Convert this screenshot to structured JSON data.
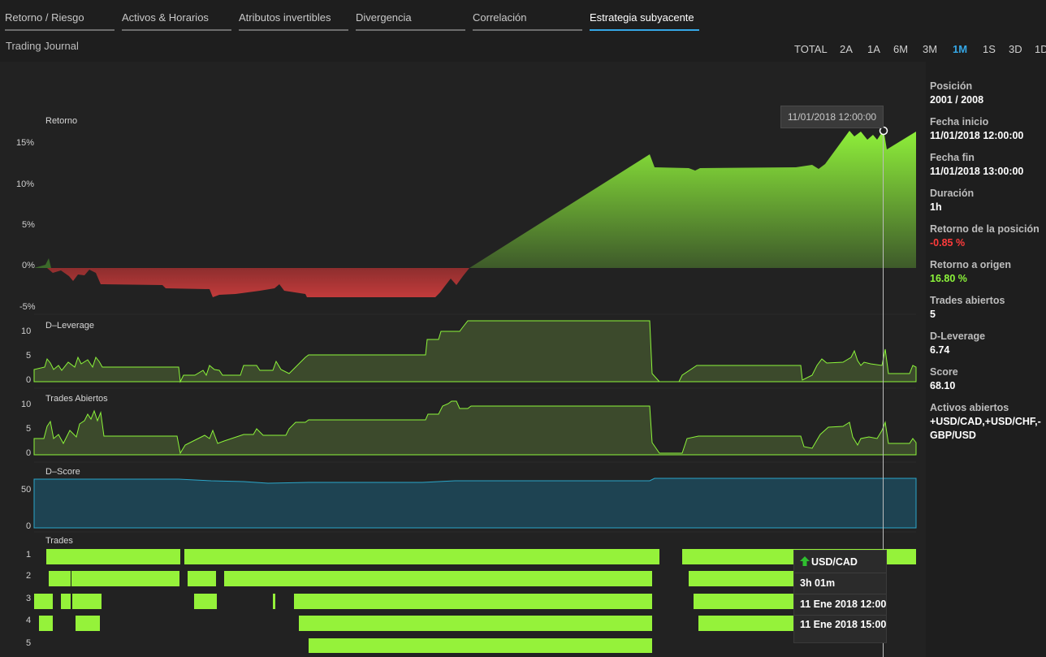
{
  "tabs": [
    {
      "label": "Retorno / Riesgo",
      "active": false
    },
    {
      "label": "Activos & Horarios",
      "active": false
    },
    {
      "label": "Atributos invertibles",
      "active": false
    },
    {
      "label": "Divergencia",
      "active": false
    },
    {
      "label": "Correlación",
      "active": false
    },
    {
      "label": "Estrategia subyacente",
      "active": true
    }
  ],
  "journal_title": "Trading Journal",
  "ranges": [
    {
      "label": "TOTAL",
      "active": false
    },
    {
      "label": "2A",
      "active": false
    },
    {
      "label": "1A",
      "active": false
    },
    {
      "label": "6M",
      "active": false
    },
    {
      "label": "3M",
      "active": false
    },
    {
      "label": "1M",
      "active": true
    },
    {
      "label": "1S",
      "active": false
    },
    {
      "label": "3D",
      "active": false
    },
    {
      "label": "1D",
      "active": false
    }
  ],
  "cursor_tooltip": "11/01/2018 12:00:00",
  "panels": {
    "retorno": {
      "title": "Retorno",
      "ticks": [
        "15%",
        "10%",
        "5%",
        "0%",
        "-5%"
      ]
    },
    "leverage": {
      "title": "D–Leverage",
      "ticks": [
        "10",
        "5",
        "0"
      ]
    },
    "trades_abiertos": {
      "title": "Trades Abiertos",
      "ticks": [
        "10",
        "5",
        "0"
      ]
    },
    "score": {
      "title": "D–Score",
      "ticks": [
        "50",
        "0"
      ]
    },
    "trades": {
      "title": "Trades",
      "rows": [
        "1",
        "2",
        "3",
        "4",
        "5"
      ]
    }
  },
  "sidebar": [
    {
      "label": "Posición",
      "value": "2001 / 2008",
      "tone": ""
    },
    {
      "label": "Fecha inicio",
      "value": "11/01/2018 12:00:00",
      "tone": ""
    },
    {
      "label": "Fecha fin",
      "value": "11/01/2018 13:00:00",
      "tone": ""
    },
    {
      "label": "Duración",
      "value": "1h",
      "tone": ""
    },
    {
      "label": "Retorno de la posición",
      "value": "-0.85 %",
      "tone": "neg"
    },
    {
      "label": "Retorno a origen",
      "value": "16.80 %",
      "tone": "pos"
    },
    {
      "label": "Trades abiertos",
      "value": "5",
      "tone": ""
    },
    {
      "label": "D-Leverage",
      "value": "6.74",
      "tone": ""
    },
    {
      "label": "Score",
      "value": "68.10",
      "tone": ""
    },
    {
      "label": "Activos abiertos",
      "value": "+USD/CAD,+USD/CHF,-GBP/USD",
      "tone": ""
    }
  ],
  "trade_tooltip": {
    "pair": "USD/CAD",
    "duration": "3h 01m",
    "start": "11 Ene 2018 12:00",
    "end": "11 Ene 2018 15:00",
    "direction_icon": "up-arrow-icon"
  },
  "colors": {
    "accent": "#35a7e6",
    "green": "#8cf53a",
    "red": "#b03a3a",
    "score": "#1f4a5a"
  }
}
